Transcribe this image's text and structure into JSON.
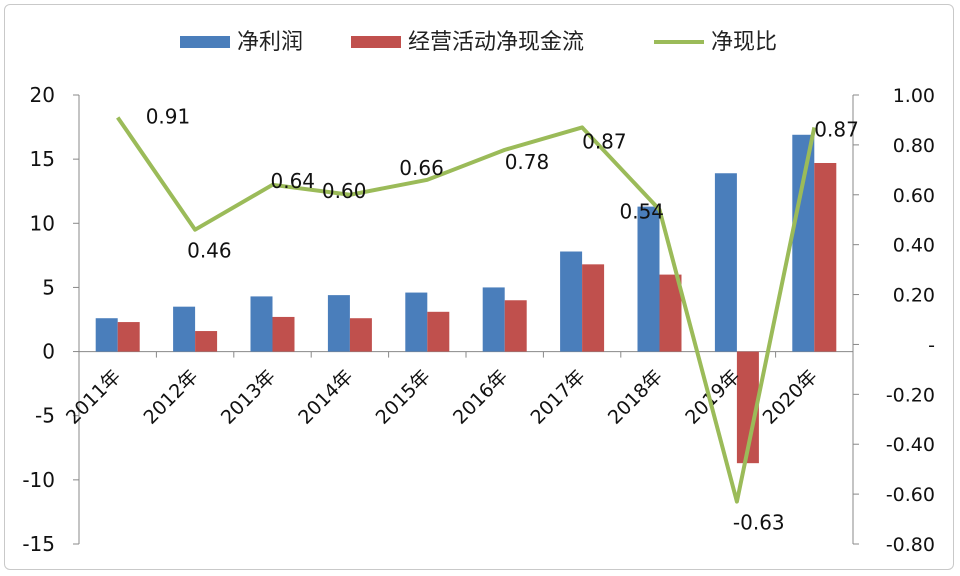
{
  "chart_data": {
    "type": "bar",
    "categories": [
      "2011年",
      "2012年",
      "2013年",
      "2014年",
      "2015年",
      "2016年",
      "2017年",
      "2018年",
      "2019年",
      "2020年"
    ],
    "series": [
      {
        "name": "净利润",
        "type": "bar",
        "axis": "left",
        "color": "#4a7ebb",
        "values": [
          2.6,
          3.5,
          4.3,
          4.4,
          4.6,
          5.0,
          7.8,
          11.3,
          13.9,
          16.9
        ]
      },
      {
        "name": "经营活动净现金流",
        "type": "bar",
        "axis": "left",
        "color": "#c0504d",
        "values": [
          2.3,
          1.6,
          2.7,
          2.6,
          3.1,
          4.0,
          6.8,
          6.0,
          -8.7,
          14.7
        ]
      },
      {
        "name": "净现比",
        "type": "line",
        "axis": "right",
        "color": "#9bbb59",
        "values": [
          0.91,
          0.46,
          0.64,
          0.6,
          0.66,
          0.78,
          0.87,
          0.54,
          -0.63,
          0.87
        ]
      }
    ],
    "data_labels": [
      "0.91",
      "0.46",
      "0.64",
      "0.60",
      "0.66",
      "0.78",
      "0.87",
      "0.54",
      "-0.63",
      "0.87"
    ],
    "y_left": {
      "ylim": [
        -15,
        20
      ],
      "ticks": [
        20,
        15,
        10,
        5,
        0,
        -5,
        -10,
        -15
      ],
      "tick_labels": [
        "20",
        "15",
        "10",
        "5",
        "0",
        "-5",
        "-10",
        "-15"
      ]
    },
    "y_right": {
      "ylim": [
        -0.8,
        1.0
      ],
      "ticks": [
        1.0,
        0.8,
        0.6,
        0.4,
        0.2,
        0.0,
        -0.2,
        -0.4,
        -0.6,
        -0.8
      ],
      "tick_labels": [
        "1.00",
        "0.80",
        "0.60",
        "0.40",
        "0.20",
        "-",
        "-0.20",
        "-0.40",
        "-0.60",
        "-0.80"
      ]
    },
    "legend_position": "top",
    "grid": false,
    "title": "",
    "xlabel": "",
    "ylabel": ""
  }
}
